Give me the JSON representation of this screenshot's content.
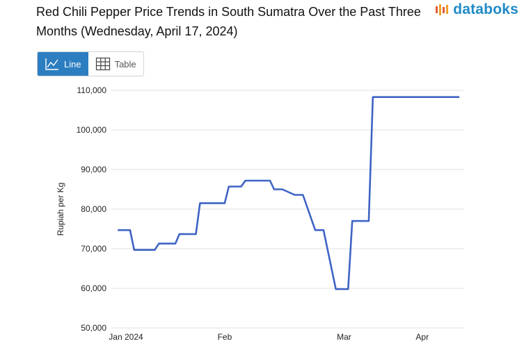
{
  "header": {
    "title": "Red Chili Pepper Price Trends in South Sumatra Over the Past Three Months (Wednesday, April 17, 2024)",
    "brand": "databoks"
  },
  "toggle": {
    "line_label": "Line",
    "table_label": "Table"
  },
  "colors": {
    "line": "#3e63c4",
    "grid": "#e2e2e2",
    "accent": "#2c7ec1",
    "brand": "#1f8bc7"
  },
  "chart_data": {
    "type": "line",
    "title": "Red Chili Pepper Price Trends in South Sumatra Over the Past Three Months (Wednesday, April 17, 2024)",
    "xlabel": "",
    "ylabel": "Rupiah per Kg",
    "ylim": [
      50000,
      110000
    ],
    "yticks": [
      50000,
      60000,
      70000,
      80000,
      90000,
      100000,
      110000
    ],
    "ytick_labels": [
      "50,000",
      "60,000",
      "70,000",
      "80,000",
      "90,000",
      "100,000",
      "110,000"
    ],
    "xlim": [
      0,
      81
    ],
    "xticks": [
      {
        "x": 0,
        "label": "Jan 2024"
      },
      {
        "x": 24,
        "label": "Feb"
      },
      {
        "x": 53,
        "label": "Mar"
      },
      {
        "x": 72,
        "label": "Apr"
      }
    ],
    "grid": true,
    "series": [
      {
        "name": "Red Chili Pepper",
        "x": [
          -2,
          0,
          1,
          2,
          5,
          7,
          8,
          12,
          13,
          17,
          18,
          19,
          24,
          25,
          28,
          29,
          30,
          31,
          32,
          35,
          36,
          37,
          38,
          41,
          42,
          43,
          46,
          47,
          48,
          51,
          52,
          54,
          55,
          56,
          59,
          60,
          61,
          62,
          63,
          64,
          66,
          67,
          68,
          69,
          70,
          71,
          73,
          74,
          75,
          76,
          77,
          78,
          79,
          80,
          81
        ],
        "values": [
          74700,
          74700,
          74700,
          69700,
          69700,
          69700,
          71300,
          71300,
          73700,
          73700,
          81500,
          81500,
          81500,
          85700,
          85700,
          87200,
          87200,
          87200,
          87200,
          87200,
          85000,
          85000,
          85000,
          83600,
          83600,
          83600,
          74700,
          74700,
          74700,
          59800,
          59800,
          59800,
          77000,
          77000,
          77000,
          108300,
          108300,
          108300,
          108300,
          108300,
          108300,
          108300,
          108300,
          108300,
          108300,
          108300,
          108300,
          108300,
          108300,
          108300,
          108300,
          108300,
          108300,
          108300,
          108300
        ]
      }
    ]
  }
}
